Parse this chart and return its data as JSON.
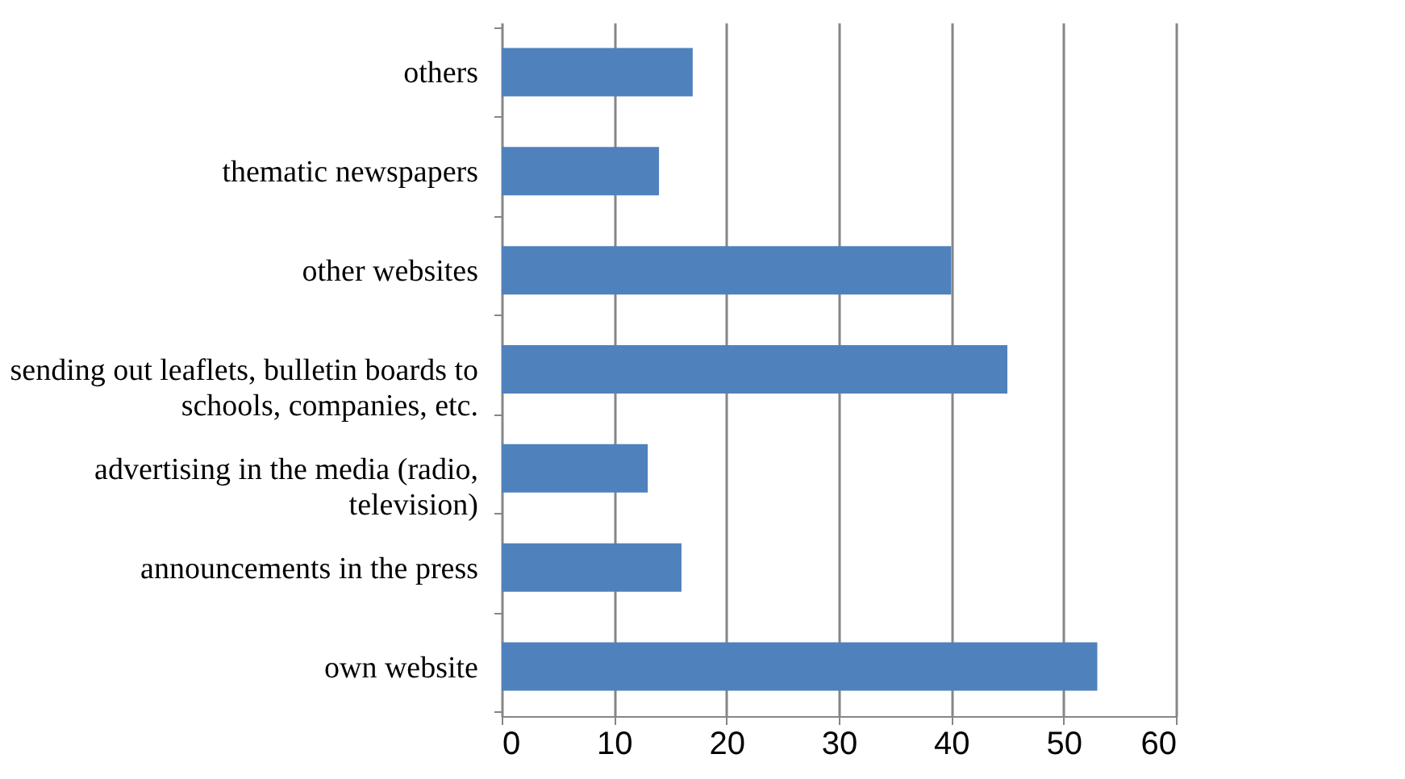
{
  "chart_data": {
    "type": "bar",
    "orientation": "horizontal",
    "categories": [
      "others",
      "thematic newspapers",
      "other websites",
      "sending out leaflets, bulletin boards to schools, companies, etc.",
      "advertising in the media (radio, television)",
      "announcements in the press",
      "own website"
    ],
    "values": [
      17,
      14,
      40,
      45,
      13,
      16,
      53
    ],
    "color": "#4f81bd",
    "xlim": [
      0,
      60
    ],
    "xticks": [
      0,
      10,
      20,
      30,
      40,
      50,
      60
    ],
    "grid": "x"
  }
}
